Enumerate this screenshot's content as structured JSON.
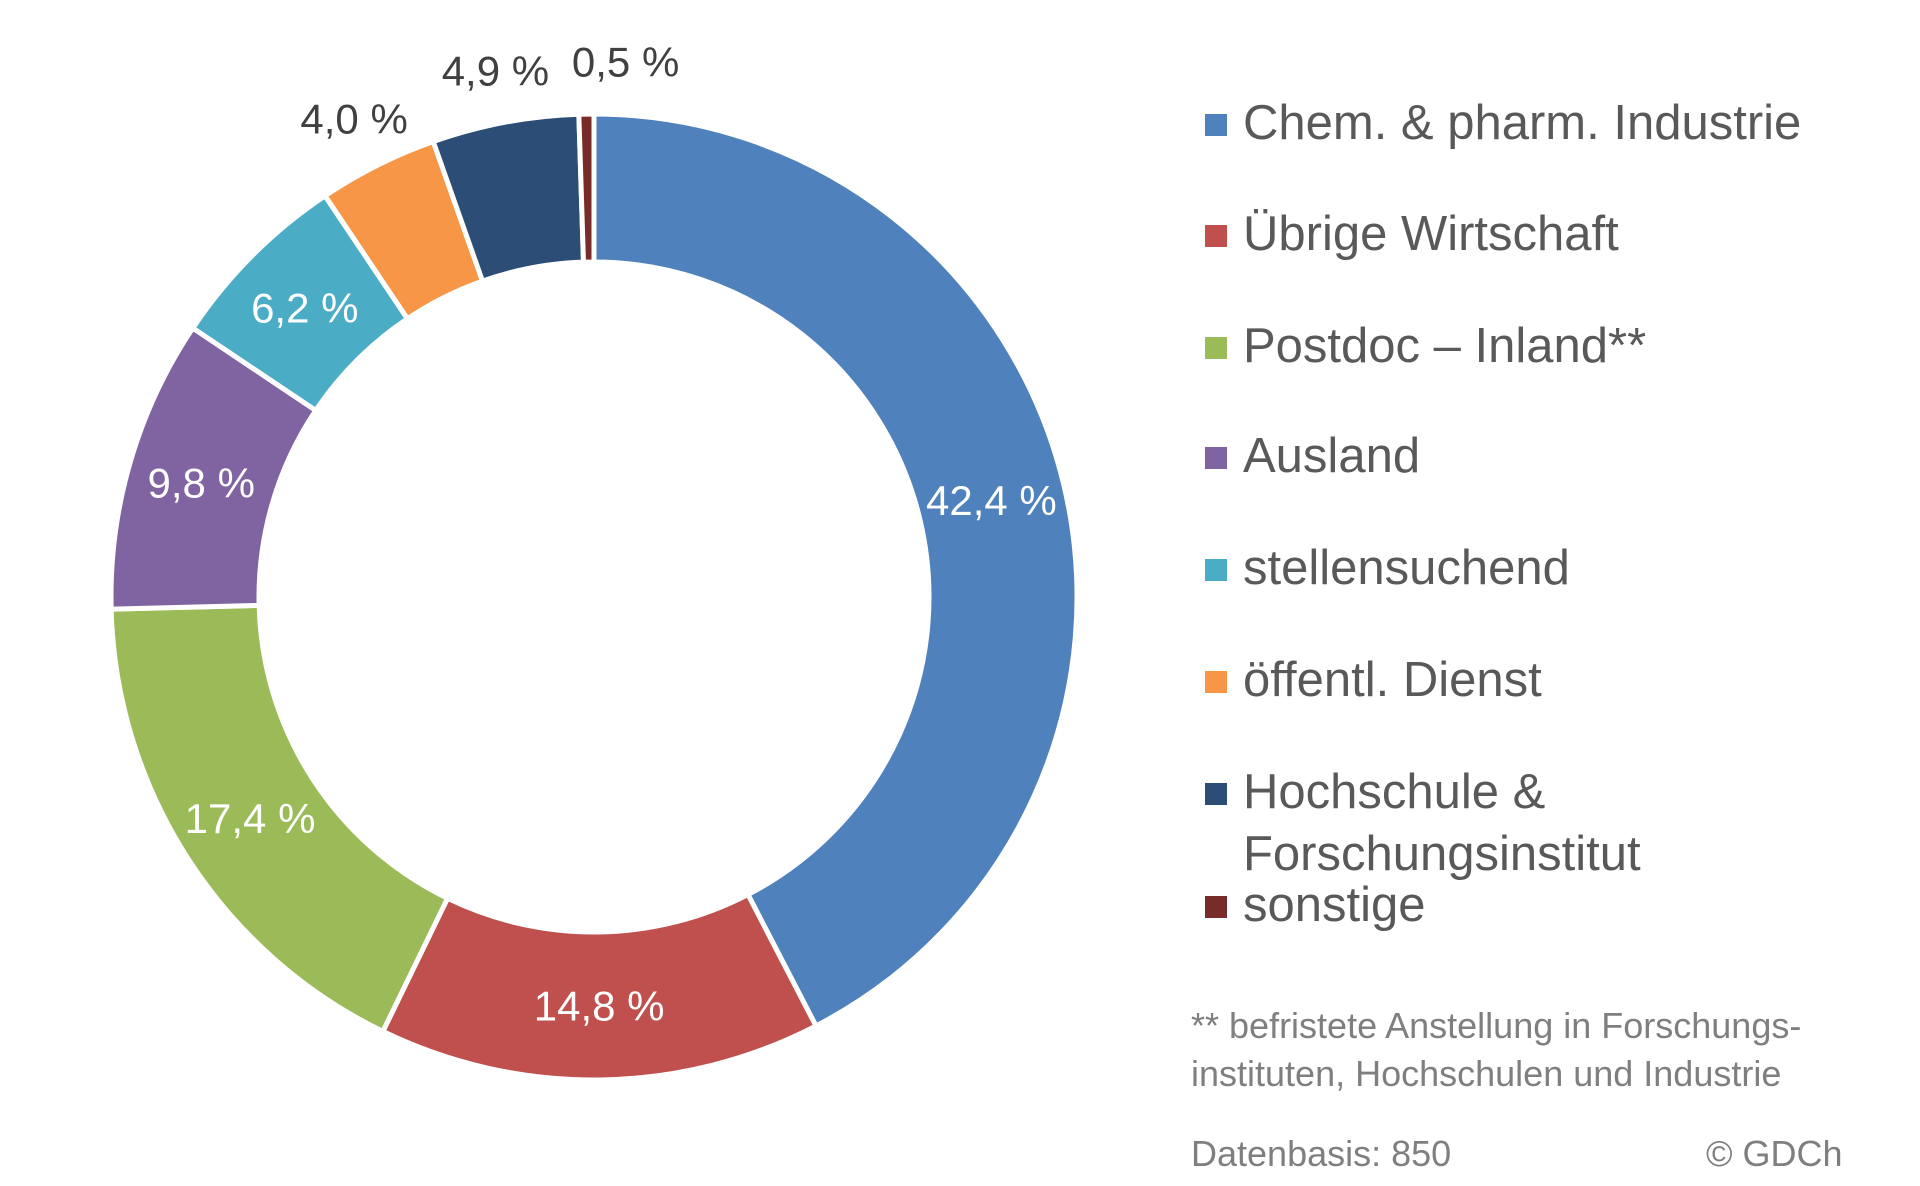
{
  "chart_data": {
    "type": "pie",
    "variant": "donut",
    "start": "top",
    "direction": "clockwise",
    "legend_position": "right",
    "slices": [
      {
        "name": "Chem. & pharm. Industrie",
        "value": 42.4,
        "label": "42,4 %",
        "color": "#4F81BD"
      },
      {
        "name": "Übrige Wirtschaft",
        "value": 14.8,
        "label": "14,8 %",
        "color": "#C0504D"
      },
      {
        "name": "Postdoc – Inland**",
        "value": 17.4,
        "label": "17,4 %",
        "color": "#9BBB59"
      },
      {
        "name": "Ausland",
        "value": 9.8,
        "label": "9,8 %",
        "color": "#8064A2"
      },
      {
        "name": "stellensuchend",
        "value": 6.2,
        "label": "6,2 %",
        "color": "#4BACC6"
      },
      {
        "name": "öffentl. Dienst",
        "value": 4.0,
        "label": "4,0 %",
        "color": "#F79646"
      },
      {
        "name": "Hochschule &\nForschungsinstitut",
        "value": 4.9,
        "label": "4,9 %",
        "color": "#2C4D75"
      },
      {
        "name": "sonstige",
        "value": 0.5,
        "label": "0,5 %",
        "color": "#772C2A"
      }
    ]
  },
  "footnote": {
    "line1": "** befristete Anstellung in Forschungs-",
    "line2": "instituten, Hochschulen und Industrie"
  },
  "basis": "Datenbasis: 850",
  "copyright": "© GDCh"
}
